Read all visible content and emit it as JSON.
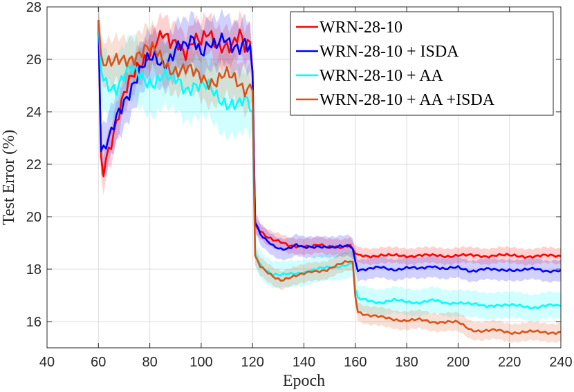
{
  "chart_data": {
    "type": "line",
    "xlabel": "Epoch",
    "ylabel": "Test Error (%)",
    "xlim": [
      40,
      240
    ],
    "ylim": [
      15,
      28
    ],
    "xticks": [
      40,
      60,
      80,
      100,
      120,
      140,
      160,
      180,
      200,
      220,
      240
    ],
    "yticks": [
      16,
      18,
      20,
      22,
      24,
      26,
      28
    ],
    "grid": true,
    "legend_position": "top-right",
    "series": [
      {
        "name": "WRN-28-10",
        "color": "#ff0000",
        "band": 0.3,
        "x": [
          60,
          61,
          62,
          63,
          65,
          67,
          70,
          73,
          76,
          79,
          82,
          85,
          88,
          91,
          94,
          97,
          100,
          103,
          106,
          109,
          112,
          115,
          117,
          119,
          120,
          121,
          123,
          125,
          128,
          131,
          134,
          137,
          140,
          143,
          146,
          149,
          152,
          155,
          158,
          159,
          160,
          161,
          165,
          170,
          175,
          180,
          185,
          190,
          195,
          200,
          205,
          210,
          215,
          220,
          225,
          230,
          235,
          240
        ],
        "y": [
          27.5,
          22.3,
          21.9,
          22.4,
          23.0,
          23.6,
          24.5,
          25.2,
          25.9,
          26.3,
          26.6,
          26.8,
          26.5,
          26.7,
          26.4,
          26.8,
          26.5,
          26.9,
          26.6,
          26.7,
          26.5,
          26.8,
          26.3,
          26.6,
          25.5,
          19.7,
          19.5,
          19.3,
          19.1,
          19.0,
          18.9,
          18.9,
          18.9,
          18.85,
          18.9,
          18.85,
          18.9,
          18.85,
          18.9,
          18.7,
          18.6,
          18.5,
          18.5,
          18.55,
          18.5,
          18.5,
          18.55,
          18.5,
          18.5,
          18.55,
          18.5,
          18.5,
          18.55,
          18.5,
          18.5,
          18.5,
          18.5,
          18.5
        ]
      },
      {
        "name": "WRN-28-10 + ISDA",
        "color": "#0000ff",
        "band": 0.4,
        "x": [
          60,
          61,
          62,
          63,
          65,
          67,
          70,
          73,
          76,
          79,
          82,
          85,
          88,
          91,
          94,
          97,
          100,
          103,
          106,
          109,
          112,
          115,
          117,
          119,
          120,
          121,
          123,
          125,
          128,
          131,
          134,
          137,
          140,
          143,
          146,
          149,
          152,
          155,
          158,
          159,
          160,
          161,
          165,
          170,
          175,
          180,
          185,
          190,
          195,
          200,
          205,
          210,
          215,
          220,
          225,
          230,
          235,
          240
        ],
        "y": [
          27.5,
          22.5,
          22.4,
          22.6,
          23.0,
          23.7,
          24.5,
          25.1,
          25.5,
          25.8,
          26.0,
          25.9,
          26.2,
          26.5,
          26.3,
          26.7,
          26.4,
          26.8,
          26.5,
          26.6,
          26.4,
          26.6,
          26.9,
          26.5,
          25.5,
          19.8,
          19.3,
          19.1,
          18.9,
          18.8,
          18.8,
          18.9,
          18.8,
          18.85,
          18.9,
          18.85,
          18.8,
          18.85,
          18.9,
          18.8,
          18.3,
          18.0,
          18.0,
          18.05,
          18.0,
          18.05,
          18.0,
          18.15,
          18.0,
          18.05,
          17.95,
          18.0,
          17.95,
          18.0,
          17.95,
          18.0,
          17.95,
          17.95
        ]
      },
      {
        "name": "WRN-28-10 + AA",
        "color": "#00ffff",
        "band": 0.5,
        "x": [
          60,
          61,
          62,
          63,
          65,
          67,
          70,
          73,
          76,
          79,
          82,
          85,
          88,
          91,
          94,
          97,
          100,
          103,
          106,
          109,
          112,
          115,
          117,
          119,
          120,
          121,
          123,
          125,
          128,
          131,
          134,
          137,
          140,
          143,
          146,
          149,
          152,
          155,
          158,
          159,
          160,
          161,
          165,
          170,
          175,
          180,
          185,
          190,
          195,
          200,
          205,
          210,
          215,
          220,
          225,
          230,
          235,
          240
        ],
        "y": [
          27.5,
          25.6,
          25.3,
          25.2,
          25.1,
          25.0,
          25.3,
          25.5,
          25.4,
          25.3,
          25.2,
          25.3,
          25.1,
          25.2,
          25.0,
          25.1,
          24.9,
          24.8,
          24.6,
          24.5,
          24.4,
          24.2,
          24.3,
          24.1,
          24.0,
          18.6,
          18.2,
          18.0,
          17.8,
          17.75,
          17.8,
          17.85,
          17.9,
          17.95,
          18.0,
          18.05,
          18.1,
          18.15,
          18.2,
          18.2,
          17.2,
          16.85,
          16.8,
          16.75,
          16.8,
          16.75,
          16.75,
          16.8,
          16.7,
          16.75,
          16.65,
          16.6,
          16.65,
          16.6,
          16.6,
          16.55,
          16.6,
          16.6
        ]
      },
      {
        "name": "WRN-28-10 + AA +ISDA",
        "color": "#d95319",
        "band": 0.35,
        "x": [
          60,
          61,
          62,
          63,
          65,
          67,
          70,
          73,
          76,
          79,
          82,
          85,
          88,
          91,
          94,
          97,
          100,
          103,
          106,
          109,
          112,
          115,
          117,
          119,
          120,
          121,
          123,
          125,
          128,
          131,
          134,
          137,
          140,
          143,
          146,
          149,
          152,
          155,
          158,
          159,
          160,
          161,
          165,
          170,
          175,
          180,
          185,
          190,
          195,
          200,
          205,
          210,
          215,
          220,
          225,
          230,
          235,
          240
        ],
        "y": [
          27.5,
          26.2,
          25.9,
          25.8,
          25.7,
          25.8,
          26.0,
          26.2,
          26.3,
          26.3,
          26.2,
          26.0,
          25.8,
          25.6,
          25.5,
          25.4,
          25.4,
          25.3,
          25.2,
          25.3,
          25.2,
          25.1,
          25.0,
          25.1,
          24.8,
          18.5,
          18.1,
          17.9,
          17.7,
          17.6,
          17.7,
          17.75,
          17.8,
          17.9,
          17.95,
          18.0,
          18.1,
          18.2,
          18.3,
          18.25,
          17.0,
          16.4,
          16.25,
          16.15,
          16.1,
          16.05,
          16.05,
          16.0,
          16.0,
          15.95,
          15.7,
          15.65,
          15.65,
          15.6,
          15.6,
          15.6,
          15.6,
          15.6
        ]
      }
    ]
  }
}
